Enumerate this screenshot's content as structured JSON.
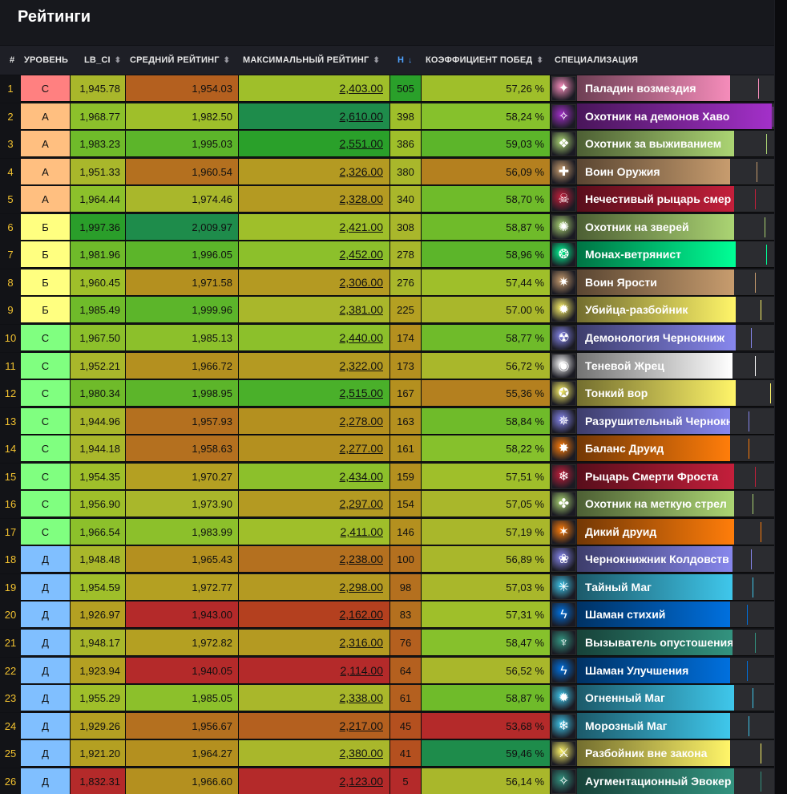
{
  "title": "Рейтинги",
  "columns": {
    "num": "#",
    "tier": "УРОВЕНЬ",
    "lb_ci": "LB_CI",
    "avg": "СРЕДНИЙ РЕЙТИНГ",
    "max": "МАКСИМАЛЬНЫЙ РЕЙТИНГ",
    "n": "Н",
    "winrate": "КОЭФФИЦИЕНТ ПОБЕД",
    "spec": "СПЕЦИАЛИЗАЦИЯ"
  },
  "sort_icons": {
    "unsorted": "⬍",
    "desc": "↓"
  },
  "tier_colors": {
    "S": "#ff8080",
    "A": "#ffbf80",
    "B": "#ffff80",
    "C": "#80ff80",
    "D": "#80bfff"
  },
  "rows": [
    {
      "num": "1",
      "tier": "С",
      "tier_key": "S",
      "lb_ci": "1,945.78",
      "avg": "1,954.03",
      "max": "2,403.00",
      "n": "505",
      "wr": "57,26 %",
      "spec": "Паладин возмездия",
      "c_lb": "#a9b72b",
      "c_avg": "#b4601f",
      "c_max": "#9fbf2a",
      "c_n": "#2aa02a",
      "c_wr": "#9fbf2a",
      "spec_color": "#f58cba",
      "icon": "paladin-icon",
      "tick": "#f58cba",
      "bar": 0.78,
      "tickpos": 0.92
    },
    {
      "num": "2",
      "tier": "А",
      "tier_key": "A",
      "lb_ci": "1,968.77",
      "avg": "1,982.50",
      "max": "2,610.00",
      "n": "398",
      "wr": "58,24 %",
      "spec": "Охотник на демонов Хаво",
      "c_lb": "#8cc02b",
      "c_avg": "#9fbf2a",
      "c_max": "#1e8c4b",
      "c_n": "#9fbf2a",
      "c_wr": "#86c12c",
      "spec_color": "#a330c9",
      "icon": "demon-hunter-icon",
      "tick": "#a330c9",
      "bar": 0.99,
      "tickpos": 0.99
    },
    {
      "num": "3",
      "tier": "А",
      "tier_key": "A",
      "lb_ci": "1,983.23",
      "avg": "1,995.03",
      "max": "2,551.00",
      "n": "386",
      "wr": "59,03 %",
      "spec": "Охотник за выживанием",
      "c_lb": "#6fbb2a",
      "c_avg": "#5cb52a",
      "c_max": "#2aa02a",
      "c_n": "#9fbf2a",
      "c_wr": "#5cb52a",
      "spec_color": "#abd473",
      "icon": "survival-hunter-icon",
      "tick": "#abd473",
      "bar": 0.8,
      "tickpos": 0.96
    },
    {
      "num": "4",
      "tier": "А",
      "tier_key": "A",
      "lb_ci": "1,951.33",
      "avg": "1,960.54",
      "max": "2,326.00",
      "n": "380",
      "wr": "56,09 %",
      "spec": "Воин Оружия",
      "c_lb": "#a9b72b",
      "c_avg": "#b4701f",
      "c_max": "#b49a22",
      "c_n": "#a9b72b",
      "c_wr": "#b4801f",
      "spec_color": "#c79c6e",
      "icon": "arms-warrior-icon",
      "tick": "#c79c6e",
      "bar": 0.78,
      "tickpos": 0.91
    },
    {
      "num": "5",
      "tier": "А",
      "tier_key": "A",
      "lb_ci": "1,964.44",
      "avg": "1,974.46",
      "max": "2,328.00",
      "n": "340",
      "wr": "58,70 %",
      "spec": "Нечестивый рыцарь смер",
      "c_lb": "#8cc02b",
      "c_avg": "#a9b72b",
      "c_max": "#b49a22",
      "c_n": "#a9b72b",
      "c_wr": "#6fbb2a",
      "spec_color": "#c41f3b",
      "icon": "unholy-dk-icon",
      "tick": "#c41f3b",
      "bar": 0.8,
      "tickpos": 0.9
    },
    {
      "num": "6",
      "tier": "Б",
      "tier_key": "B",
      "lb_ci": "1,997.36",
      "avg": "2,009.97",
      "max": "2,421.00",
      "n": "308",
      "wr": "58,87 %",
      "spec": "Охотник на зверей",
      "c_lb": "#2a9e2a",
      "c_avg": "#1e8c4b",
      "c_max": "#9fbf2a",
      "c_n": "#a9b72b",
      "c_wr": "#6fbb2a",
      "spec_color": "#abd473",
      "icon": "beast-mastery-icon",
      "tick": "#abd473",
      "bar": 0.8,
      "tickpos": 0.95
    },
    {
      "num": "7",
      "tier": "Б",
      "tier_key": "B",
      "lb_ci": "1,981.96",
      "avg": "1,996.05",
      "max": "2,452.00",
      "n": "278",
      "wr": "58,96 %",
      "spec": "Монах-ветрянист",
      "c_lb": "#6fbb2a",
      "c_avg": "#5cb52a",
      "c_max": "#8cc02b",
      "c_n": "#a9b72b",
      "c_wr": "#5cb52a",
      "spec_color": "#00ff96",
      "icon": "mistweaver-icon",
      "tick": "#00ff96",
      "bar": 0.81,
      "tickpos": 0.96
    },
    {
      "num": "8",
      "tier": "Б",
      "tier_key": "B",
      "lb_ci": "1,960.45",
      "avg": "1,971.58",
      "max": "2,306.00",
      "n": "276",
      "wr": "57,44 %",
      "spec": "Воин Ярости",
      "c_lb": "#9fbf2a",
      "c_avg": "#b4901f",
      "c_max": "#b49a22",
      "c_n": "#a9b72b",
      "c_wr": "#9fbf2a",
      "spec_color": "#c79c6e",
      "icon": "fury-warrior-icon",
      "tick": "#c79c6e",
      "bar": 0.8,
      "tickpos": 0.9
    },
    {
      "num": "9",
      "tier": "Б",
      "tier_key": "B",
      "lb_ci": "1,985.49",
      "avg": "1,999.96",
      "max": "2,381.00",
      "n": "225",
      "wr": "57.00 %",
      "spec": "Убийца-разбойник",
      "c_lb": "#6fbb2a",
      "c_avg": "#5cb52a",
      "c_max": "#a9b72b",
      "c_n": "#b4a022",
      "c_wr": "#a9b72b",
      "spec_color": "#fff569",
      "icon": "assassination-icon",
      "tick": "#fff569",
      "bar": 0.81,
      "tickpos": 0.93
    },
    {
      "num": "10",
      "tier": "С",
      "tier_key": "C",
      "lb_ci": "1,967.50",
      "avg": "1,985.13",
      "max": "2,440.00",
      "n": "174",
      "wr": "58,77 %",
      "spec": "Демонология Чернокниж",
      "c_lb": "#8cc02b",
      "c_avg": "#8cc02b",
      "c_max": "#8cc02b",
      "c_n": "#b4901f",
      "c_wr": "#6fbb2a",
      "spec_color": "#8787ed",
      "icon": "demonology-icon",
      "tick": "#8787ed",
      "bar": 0.81,
      "tickpos": 0.88
    },
    {
      "num": "11",
      "tier": "С",
      "tier_key": "C",
      "lb_ci": "1,952.21",
      "avg": "1,966.72",
      "max": "2,322.00",
      "n": "173",
      "wr": "56,72 %",
      "spec": "Теневой Жрец",
      "c_lb": "#a9b72b",
      "c_avg": "#b4901f",
      "c_max": "#b49a22",
      "c_n": "#b4901f",
      "c_wr": "#a9b72b",
      "spec_color": "#ffffff",
      "icon": "shadow-priest-icon",
      "tick": "#ffffff",
      "bar": 0.79,
      "tickpos": 0.9
    },
    {
      "num": "12",
      "tier": "С",
      "tier_key": "C",
      "lb_ci": "1,980.34",
      "avg": "1,998.95",
      "max": "2,515.00",
      "n": "167",
      "wr": "55,36 %",
      "spec": "Тонкий вор",
      "c_lb": "#6fbb2a",
      "c_avg": "#5cb52a",
      "c_max": "#4ab02a",
      "c_n": "#b4901f",
      "c_wr": "#b4801f",
      "spec_color": "#fff569",
      "icon": "subtlety-icon",
      "tick": "#fff569",
      "bar": 0.81,
      "tickpos": 0.98
    },
    {
      "num": "13",
      "tier": "С",
      "tier_key": "C",
      "lb_ci": "1,944.96",
      "avg": "1,957.93",
      "max": "2,278.00",
      "n": "163",
      "wr": "58,84 %",
      "spec": "Разрушительный Чернокн",
      "c_lb": "#a9b72b",
      "c_avg": "#b4701f",
      "c_max": "#b4901f",
      "c_n": "#b4901f",
      "c_wr": "#6fbb2a",
      "spec_color": "#8787ed",
      "icon": "destruction-icon",
      "tick": "#8787ed",
      "bar": 0.78,
      "tickpos": 0.87
    },
    {
      "num": "14",
      "tier": "С",
      "tier_key": "C",
      "lb_ci": "1,944.18",
      "avg": "1,958.63",
      "max": "2,277.00",
      "n": "161",
      "wr": "58,22 %",
      "spec": "Баланс Друид",
      "c_lb": "#a9b72b",
      "c_avg": "#b4701f",
      "c_max": "#b4901f",
      "c_n": "#b4901f",
      "c_wr": "#86c12c",
      "spec_color": "#ff7d0a",
      "icon": "balance-druid-icon",
      "tick": "#ff7d0a",
      "bar": 0.78,
      "tickpos": 0.87
    },
    {
      "num": "15",
      "tier": "С",
      "tier_key": "C",
      "lb_ci": "1,954.35",
      "avg": "1,970.27",
      "max": "2,434.00",
      "n": "159",
      "wr": "57,51 %",
      "spec": "Рыцарь Смерти Фроста",
      "c_lb": "#9fbf2a",
      "c_avg": "#b4a022",
      "c_max": "#8cc02b",
      "c_n": "#b4901f",
      "c_wr": "#9fbf2a",
      "spec_color": "#c41f3b",
      "icon": "frost-dk-icon",
      "tick": "#c41f3b",
      "bar": 0.8,
      "tickpos": 0.9
    },
    {
      "num": "16",
      "tier": "С",
      "tier_key": "C",
      "lb_ci": "1,956.90",
      "avg": "1,973.90",
      "max": "2,297.00",
      "n": "154",
      "wr": "57,05 %",
      "spec": "Охотник на меткую стрел",
      "c_lb": "#9fbf2a",
      "c_avg": "#a9b72b",
      "c_max": "#b49a22",
      "c_n": "#b4901f",
      "c_wr": "#a9b72b",
      "spec_color": "#abd473",
      "icon": "marksmanship-icon",
      "tick": "#abd473",
      "bar": 0.8,
      "tickpos": 0.89
    },
    {
      "num": "17",
      "tier": "С",
      "tier_key": "C",
      "lb_ci": "1,966.54",
      "avg": "1,983.99",
      "max": "2,411.00",
      "n": "146",
      "wr": "57,19 %",
      "spec": "Дикий друид",
      "c_lb": "#8cc02b",
      "c_avg": "#8cc02b",
      "c_max": "#9fbf2a",
      "c_n": "#b4901f",
      "c_wr": "#a9b72b",
      "spec_color": "#ff7d0a",
      "icon": "feral-druid-icon",
      "tick": "#ff7d0a",
      "bar": 0.8,
      "tickpos": 0.93
    },
    {
      "num": "18",
      "tier": "Д",
      "tier_key": "D",
      "lb_ci": "1,948.48",
      "avg": "1,965.43",
      "max": "2,238.00",
      "n": "100",
      "wr": "56,89 %",
      "spec": "Чернокнижник Колдовств",
      "c_lb": "#a9b72b",
      "c_avg": "#b4901f",
      "c_max": "#b4701f",
      "c_n": "#b4701f",
      "c_wr": "#a9b72b",
      "spec_color": "#8787ed",
      "icon": "affliction-icon",
      "tick": "#8787ed",
      "bar": 0.79,
      "tickpos": 0.88
    },
    {
      "num": "19",
      "tier": "Д",
      "tier_key": "D",
      "lb_ci": "1,954.59",
      "avg": "1,972.77",
      "max": "2,298.00",
      "n": "98",
      "wr": "57,03 %",
      "spec": "Тайный Маг",
      "c_lb": "#9fbf2a",
      "c_avg": "#b4a022",
      "c_max": "#b49a22",
      "c_n": "#b4701f",
      "c_wr": "#a9b72b",
      "spec_color": "#3fc7eb",
      "icon": "arcane-mage-icon",
      "tick": "#3fc7eb",
      "bar": 0.79,
      "tickpos": 0.89
    },
    {
      "num": "20",
      "tier": "Д",
      "tier_key": "D",
      "lb_ci": "1,926.97",
      "avg": "1,943.00",
      "max": "2,162.00",
      "n": "83",
      "wr": "57,31 %",
      "spec": "Шаман стихий",
      "c_lb": "#b4a022",
      "c_avg": "#b42a2a",
      "c_max": "#b4401f",
      "c_n": "#b4701f",
      "c_wr": "#9fbf2a",
      "spec_color": "#0070de",
      "icon": "elemental-icon",
      "tick": "#0070de",
      "bar": 0.78,
      "tickpos": 0.86
    },
    {
      "num": "21",
      "tier": "Д",
      "tier_key": "D",
      "lb_ci": "1,948.17",
      "avg": "1,972.82",
      "max": "2,316.00",
      "n": "76",
      "wr": "58,47 %",
      "spec": "Вызыватель опустошения",
      "c_lb": "#a9b72b",
      "c_avg": "#b4a022",
      "c_max": "#b49a22",
      "c_n": "#b4601f",
      "c_wr": "#86c12c",
      "spec_color": "#33937f",
      "icon": "devastation-icon",
      "tick": "#33937f",
      "bar": 0.79,
      "tickpos": 0.9
    },
    {
      "num": "22",
      "tier": "Д",
      "tier_key": "D",
      "lb_ci": "1,923.94",
      "avg": "1,940.05",
      "max": "2,114.00",
      "n": "64",
      "wr": "56,52 %",
      "spec": "Шаман Улучшения",
      "c_lb": "#b4a022",
      "c_avg": "#b42a2a",
      "c_max": "#b42a2a",
      "c_n": "#b4601f",
      "c_wr": "#a9b72b",
      "spec_color": "#0070de",
      "icon": "enhancement-icon",
      "tick": "#0070de",
      "bar": 0.78,
      "tickpos": 0.86
    },
    {
      "num": "23",
      "tier": "Д",
      "tier_key": "D",
      "lb_ci": "1,955.29",
      "avg": "1,985.05",
      "max": "2,338.00",
      "n": "61",
      "wr": "58,87 %",
      "spec": "Огненный Маг",
      "c_lb": "#9fbf2a",
      "c_avg": "#8cc02b",
      "c_max": "#a9b72b",
      "c_n": "#b4601f",
      "c_wr": "#6fbb2a",
      "spec_color": "#3fc7eb",
      "icon": "fire-mage-icon",
      "tick": "#3fc7eb",
      "bar": 0.8,
      "tickpos": 0.89
    },
    {
      "num": "24",
      "tier": "Д",
      "tier_key": "D",
      "lb_ci": "1,929.26",
      "avg": "1,956.67",
      "max": "2,217.00",
      "n": "45",
      "wr": "53,68 %",
      "spec": "Морозный Маг",
      "c_lb": "#b4a022",
      "c_avg": "#b4701f",
      "c_max": "#b4601f",
      "c_n": "#b4501f",
      "c_wr": "#b42a2a",
      "spec_color": "#3fc7eb",
      "icon": "frost-mage-icon",
      "tick": "#3fc7eb",
      "bar": 0.78,
      "tickpos": 0.87
    },
    {
      "num": "25",
      "tier": "Д",
      "tier_key": "D",
      "lb_ci": "1,921.20",
      "avg": "1,964.27",
      "max": "2,380.00",
      "n": "41",
      "wr": "59,46 %",
      "spec": "Разбойник вне закона",
      "c_lb": "#b4a022",
      "c_avg": "#b4901f",
      "c_max": "#a9b72b",
      "c_n": "#b4501f",
      "c_wr": "#1e8c4b",
      "spec_color": "#fff569",
      "icon": "outlaw-icon",
      "tick": "#fff569",
      "bar": 0.78,
      "tickpos": 0.93
    },
    {
      "num": "26",
      "tier": "Д",
      "tier_key": "D",
      "lb_ci": "1,832.31",
      "avg": "1,966.60",
      "max": "2,123.00",
      "n": "5",
      "wr": "56,14 %",
      "spec": "Аугментационный Эвокер",
      "c_lb": "#b42a2a",
      "c_avg": "#b4901f",
      "c_max": "#b42a2a",
      "c_n": "#b42a2a",
      "c_wr": "#a9b72b",
      "spec_color": "#33937f",
      "icon": "augmentation-icon",
      "tick": "#33937f",
      "bar": 0.8,
      "tickpos": 0.93
    }
  ]
}
